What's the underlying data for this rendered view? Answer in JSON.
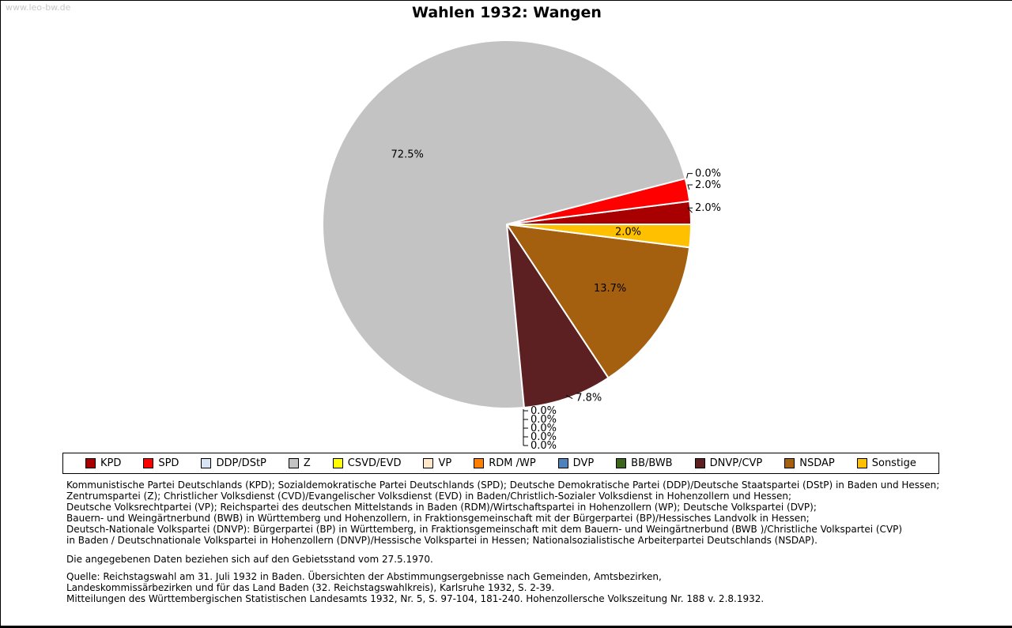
{
  "watermark": "www.leo-bw.de",
  "chart_data": {
    "type": "pie",
    "title": "Wahlen 1932: Wangen",
    "unit": "percent",
    "direction": "counterclockwise",
    "start_angle_deg": 0,
    "legend_position": "bottom",
    "slices": [
      {
        "party": "KPD",
        "value": 2.0,
        "label": "2.0%",
        "color": "#a80000",
        "label_placement": "right"
      },
      {
        "party": "SPD",
        "value": 2.0,
        "label": "2.0%",
        "color": "#ff0000",
        "label_placement": "right"
      },
      {
        "party": "DDP/DStP",
        "value": 0.0,
        "label": "0.0%",
        "color": "#d8e4f4",
        "label_placement": "right"
      },
      {
        "party": "Z",
        "value": 72.5,
        "label": "72.5%",
        "color": "#c3c3c3",
        "label_placement": "inside"
      },
      {
        "party": "CSVD/EVD",
        "value": 0.0,
        "label": "0.0%",
        "color": "#ffff00",
        "label_placement": "bottom"
      },
      {
        "party": "VP",
        "value": 0.0,
        "label": "0.0%",
        "color": "#ffe8c8",
        "label_placement": "bottom"
      },
      {
        "party": "RDM /WP",
        "value": 0.0,
        "label": "0.0%",
        "color": "#ff8000",
        "label_placement": "bottom"
      },
      {
        "party": "DVP",
        "value": 0.0,
        "label": "0.0%",
        "color": "#4f81bd",
        "label_placement": "bottom"
      },
      {
        "party": "BB/BWB",
        "value": 0.0,
        "label": "0.0%",
        "color": "#3c651c",
        "label_placement": "bottom"
      },
      {
        "party": "DNVP/CVP",
        "value": 7.8,
        "label": "7.8%",
        "color": "#5c1f22",
        "label_placement": "edge"
      },
      {
        "party": "NSDAP",
        "value": 13.7,
        "label": "13.7%",
        "color": "#a4600f",
        "label_placement": "inside"
      },
      {
        "party": "Sonstige",
        "value": 2.0,
        "label": "2.0%",
        "color": "#ffc000",
        "label_placement": "inside"
      }
    ]
  },
  "notes": {
    "abbreviations": "Kommunistische Partei Deutschlands (KPD); Sozialdemokratische Partei Deutschlands (SPD); Deutsche Demokratische Partei (DDP)/Deutsche Staatspartei (DStP) in Baden und Hessen;\nZentrumspartei (Z); Christlicher Volksdienst (CVD)/Evangelischer Volksdienst (EVD) in Baden/Christlich-Sozialer Volksdienst in Hohenzollern und Hessen;\nDeutsche Volksrechtpartei (VP); Reichspartei des deutschen Mittelstands in Baden (RDM)/Wirtschaftspartei in Hohenzollern (WP); Deutsche Volkspartei (DVP);\nBauern- und Weingärtnerbund (BWB) in Württemberg und Hohenzollern, in Fraktionsgemeinschaft mit der Bürgerpartei (BP)/Hessisches Landvolk in Hessen;\nDeutsch-Nationale Volkspartei (DNVP): Bürgerpartei (BP) in Württemberg, in Fraktionsgemeinschaft mit dem Bauern- und Weingärtnerbund (BWB )/Christliche Volkspartei (CVP)\nin Baden / Deutschnationale Volkspartei in Hohenzollern (DNVP)/Hessische Volkspartei in Hessen; Nationalsozialistische Arbeiterpartei Deutschlands (NSDAP).",
    "territory": "Die angegebenen Daten beziehen sich auf den Gebietsstand vom 27.5.1970.",
    "source": "Quelle: Reichstagswahl am 31. Juli 1932 in Baden. Übersichten der Abstimmungsergebnisse nach Gemeinden, Amtsbezirken,\nLandeskommissärbezirken und für das Land Baden (32. Reichstagswahlkreis), Karlsruhe 1932, S. 2-39.\nMitteilungen des Württembergischen Statistischen Landesamts 1932, Nr. 5, S. 97-104, 181-240. Hohenzollersche Volkszeitung Nr. 188 v. 2.8.1932."
  }
}
